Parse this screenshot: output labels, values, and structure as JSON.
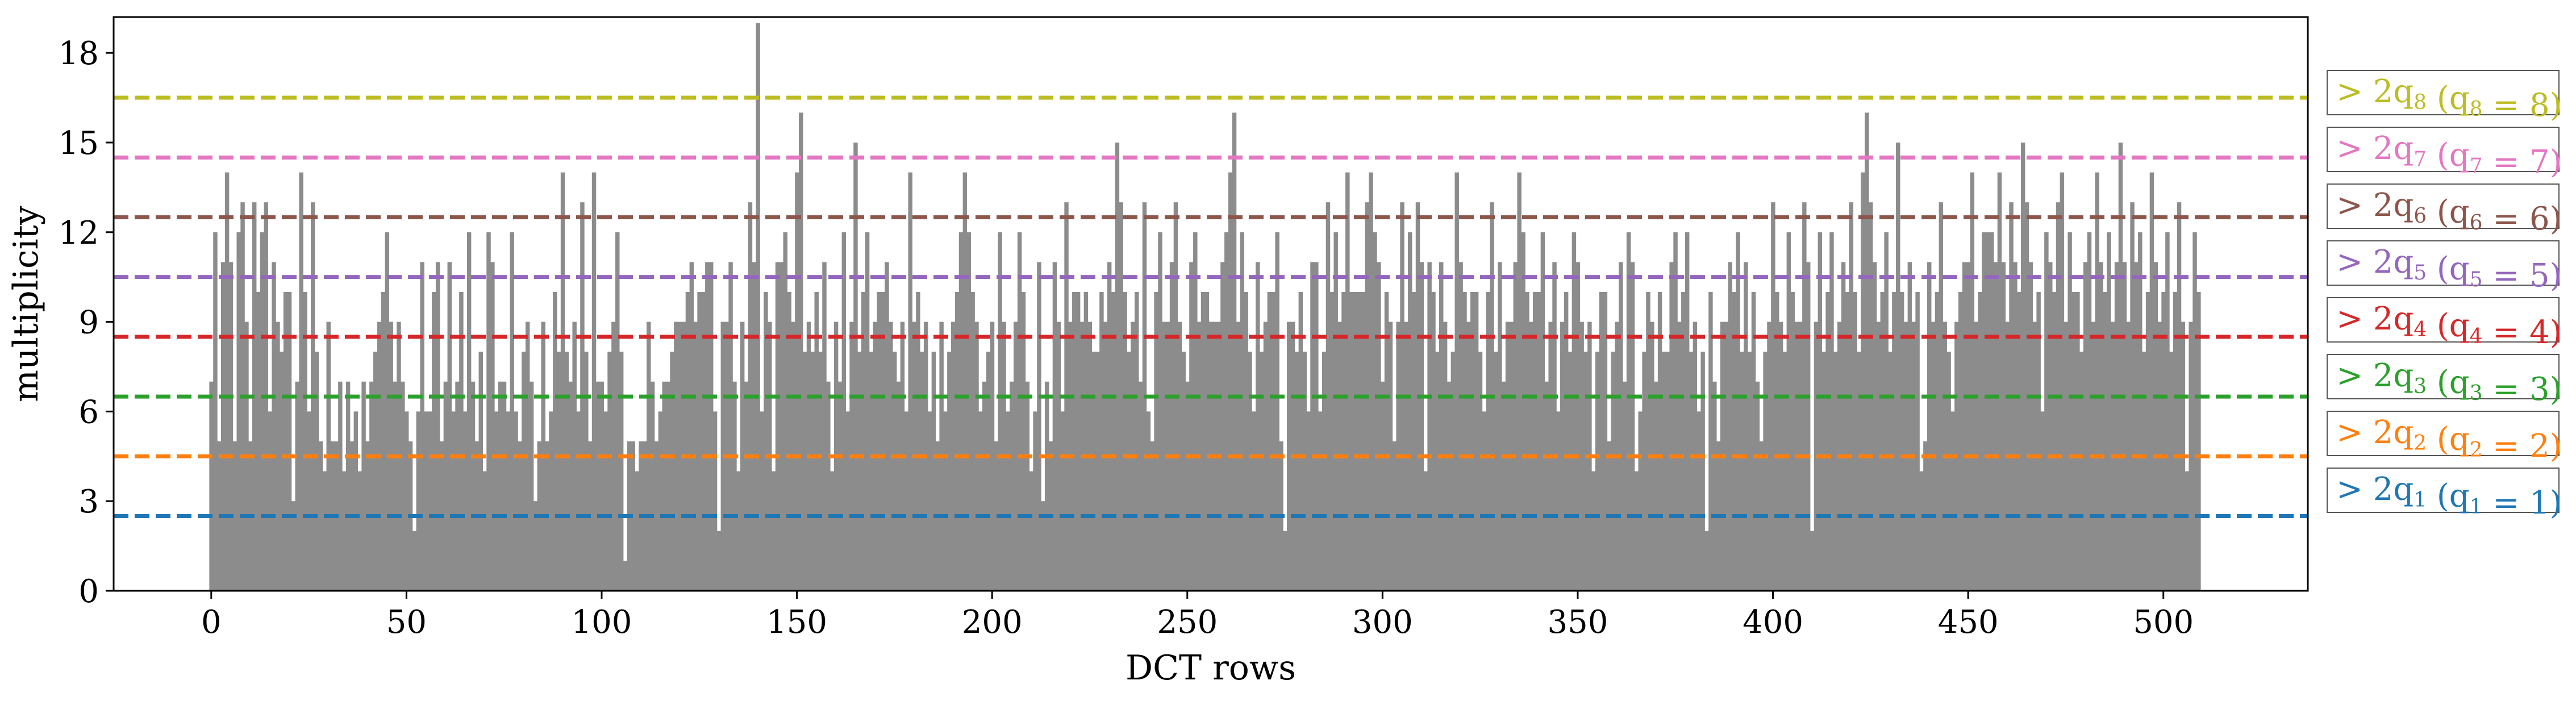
{
  "chart_data": {
    "type": "bar",
    "xlabel": "DCT rows",
    "ylabel": "multiplicity",
    "xlim": [
      -25,
      537
    ],
    "ylim": [
      0,
      19.2
    ],
    "xticks": [
      "0",
      "50",
      "100",
      "150",
      "200",
      "250",
      "300",
      "350",
      "400",
      "450",
      "500"
    ],
    "yticks": [
      "0",
      "3",
      "6",
      "9",
      "12",
      "15",
      "18"
    ],
    "bar_color": "#8c8c8c",
    "bar_gap_color": "#ffffff",
    "bar_width": 1,
    "x_start": 0,
    "values": [
      7,
      12,
      5,
      11,
      14,
      11,
      5,
      12,
      13,
      9,
      5,
      13,
      10,
      12,
      13,
      6,
      11,
      9,
      8,
      10,
      10,
      3,
      7,
      14,
      10,
      6,
      13,
      8,
      5,
      4,
      9,
      5,
      5,
      7,
      4,
      7,
      5,
      6,
      4,
      7,
      5,
      7,
      8,
      9,
      10,
      12,
      9,
      7,
      9,
      7,
      6,
      5,
      2,
      6,
      11,
      6,
      6,
      10,
      11,
      5,
      7,
      11,
      6,
      7,
      10,
      6,
      12,
      7,
      5,
      8,
      4,
      12,
      11,
      6,
      7,
      7,
      6,
      12,
      6,
      5,
      8,
      9,
      7,
      3,
      5,
      9,
      5,
      6,
      10,
      8,
      14,
      8,
      7,
      9,
      6,
      13,
      8,
      5,
      14,
      7,
      7,
      6,
      8,
      9,
      12,
      8,
      1,
      5,
      5,
      4,
      5,
      5,
      9,
      7,
      5,
      6,
      7,
      7,
      8,
      9,
      9,
      9,
      10,
      11,
      9,
      10,
      10,
      11,
      11,
      6,
      2,
      9,
      9,
      11,
      7,
      4,
      9,
      7,
      13,
      11,
      19,
      6,
      10,
      9,
      4,
      11,
      11,
      12,
      10,
      9,
      14,
      16,
      8,
      9,
      8,
      10,
      8,
      11,
      7,
      4,
      9,
      7,
      12,
      6,
      9,
      15,
      8,
      10,
      12,
      8,
      9,
      10,
      10,
      11,
      9,
      8,
      7,
      9,
      6,
      14,
      9,
      10,
      8,
      9,
      6,
      8,
      5,
      9,
      6,
      8,
      9,
      10,
      12,
      14,
      12,
      10,
      9,
      6,
      7,
      8,
      9,
      5,
      12,
      9,
      6,
      7,
      9,
      12,
      10,
      7,
      4,
      6,
      11,
      3,
      7,
      5,
      11,
      9,
      6,
      13,
      9,
      10,
      10,
      9,
      10,
      9,
      8,
      8,
      10,
      9,
      11,
      10,
      15,
      13,
      10,
      8,
      9,
      10,
      7,
      13,
      6,
      5,
      10,
      12,
      9,
      9,
      11,
      13,
      9,
      8,
      7,
      11,
      12,
      9,
      10,
      10,
      9,
      9,
      9,
      11,
      12,
      14,
      16,
      9,
      12,
      10,
      8,
      6,
      11,
      8,
      9,
      10,
      10,
      12,
      5,
      2,
      9,
      9,
      8,
      10,
      8,
      6,
      11,
      11,
      6,
      8,
      13,
      10,
      12,
      9,
      10,
      14,
      10,
      10,
      10,
      10,
      13,
      14,
      12,
      11,
      7,
      10,
      9,
      5,
      9,
      13,
      9,
      12,
      10,
      13,
      11,
      4,
      11,
      10,
      8,
      11,
      9,
      7,
      8,
      14,
      11,
      10,
      9,
      10,
      10,
      8,
      6,
      10,
      13,
      8,
      11,
      7,
      9,
      9,
      11,
      14,
      12,
      10,
      9,
      10,
      10,
      12,
      7,
      9,
      11,
      6,
      9,
      10,
      8,
      12,
      11,
      9,
      8,
      9,
      4,
      8,
      10,
      10,
      5,
      8,
      9,
      11,
      7,
      12,
      11,
      4,
      6,
      8,
      10,
      9,
      7,
      10,
      8,
      8,
      11,
      12,
      9,
      10,
      12,
      8,
      9,
      6,
      8,
      2,
      10,
      7,
      5,
      9,
      9,
      11,
      10,
      12,
      8,
      11,
      8,
      10,
      7,
      5,
      8,
      9,
      13,
      10,
      9,
      8,
      12,
      10,
      9,
      9,
      13,
      11,
      2,
      9,
      12,
      8,
      10,
      12,
      8,
      9,
      11,
      10,
      13,
      10,
      8,
      14,
      16,
      13,
      11,
      9,
      10,
      12,
      8,
      10,
      15,
      10,
      9,
      11,
      9,
      10,
      4,
      5,
      11,
      9,
      10,
      13,
      9,
      8,
      6,
      9,
      10,
      11,
      11,
      14,
      9,
      10,
      12,
      12,
      12,
      11,
      14,
      11,
      9,
      13,
      11,
      10,
      15,
      13,
      11,
      9,
      10,
      6,
      12,
      11,
      10,
      13,
      14,
      9,
      12,
      10,
      10,
      8,
      11,
      12,
      9,
      14,
      11,
      10,
      12,
      9,
      11,
      15,
      11,
      9,
      13,
      11,
      12,
      8,
      10,
      14,
      11,
      9,
      10,
      12,
      8,
      10,
      13,
      9,
      4,
      9,
      12,
      10
    ],
    "thresholds": [
      {
        "value": 2.5,
        "color": "#1f77b4",
        "label": "> 2q₁ (q₁ = 1)",
        "pre": "> 2q",
        "sub": "1",
        "mid": " (q",
        "sub2": "1",
        "post": " = 1)"
      },
      {
        "value": 4.5,
        "color": "#ff7f0e",
        "label": "> 2q₂ (q₂ = 2)",
        "pre": "> 2q",
        "sub": "2",
        "mid": " (q",
        "sub2": "2",
        "post": " = 2)"
      },
      {
        "value": 6.5,
        "color": "#2ca02c",
        "label": "> 2q₃ (q₃ = 3)",
        "pre": "> 2q",
        "sub": "3",
        "mid": " (q",
        "sub2": "3",
        "post": " = 3)"
      },
      {
        "value": 8.5,
        "color": "#d62728",
        "label": "> 2q₄ (q₄ = 4)",
        "pre": "> 2q",
        "sub": "4",
        "mid": " (q",
        "sub2": "4",
        "post": " = 4)"
      },
      {
        "value": 10.5,
        "color": "#9467bd",
        "label": "> 2q₅ (q₅ = 5)",
        "pre": "> 2q",
        "sub": "5",
        "mid": " (q",
        "sub2": "5",
        "post": " = 5)"
      },
      {
        "value": 12.5,
        "color": "#8c564b",
        "label": "> 2q₆ (q₆ = 6)",
        "pre": "> 2q",
        "sub": "6",
        "mid": " (q",
        "sub2": "6",
        "post": " = 6)"
      },
      {
        "value": 14.5,
        "color": "#e377c2",
        "label": "> 2q₇ (q₇ = 7)",
        "pre": "> 2q",
        "sub": "7",
        "mid": " (q",
        "sub2": "7",
        "post": " = 7)"
      },
      {
        "value": 16.5,
        "color": "#bcbd22",
        "label": "> 2q₈ (q₈ = 8)",
        "pre": "> 2q",
        "sub": "8",
        "mid": " (q",
        "sub2": "8",
        "post": " = 8)"
      }
    ],
    "legend_placement": "right-outside",
    "grid": false
  }
}
